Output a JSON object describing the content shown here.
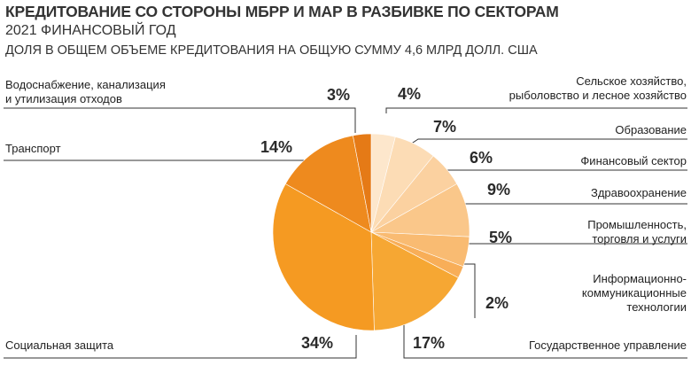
{
  "chart_data": {
    "type": "pie",
    "title": "КРЕДИТОВАНИЕ СО СТОРОНЫ МБРР И МАР В РАЗБИВКЕ ПО СЕКТОРАМ",
    "subtitle": "2021 ФИНАНСОВЫЙ ГОД",
    "note": "ДОЛЯ В ОБЩЕМ ОБЪЕМЕ КРЕДИТОВАНИЯ НА ОБЩУЮ СУММУ 4,6 МЛРД ДОЛЛ. США",
    "slices": [
      {
        "label": "Сельское хозяйство,\nрыболовство и лесное хозяйство",
        "value": 4,
        "value_label": "4%",
        "color": "#fde7cc"
      },
      {
        "label": "Образование",
        "value": 7,
        "value_label": "7%",
        "color": "#fcdcb5"
      },
      {
        "label": "Финансовый сектор",
        "value": 6,
        "value_label": "6%",
        "color": "#fbd1a0"
      },
      {
        "label": "Здравоохранение",
        "value": 9,
        "value_label": "9%",
        "color": "#fac78a"
      },
      {
        "label": "Промышленность,\nторговля и услуги",
        "value": 5,
        "value_label": "5%",
        "color": "#f9bb72"
      },
      {
        "label": "Информационно-\nкоммуникационные\nтехнологии",
        "value": 2,
        "value_label": "2%",
        "color": "#f8ae58"
      },
      {
        "label": "Государственное управление",
        "value": 17,
        "value_label": "17%",
        "color": "#f6a733"
      },
      {
        "label": "Социальная защита",
        "value": 34,
        "value_label": "34%",
        "color": "#f59a22"
      },
      {
        "label": "Транспорт",
        "value": 14,
        "value_label": "14%",
        "color": "#ee8a1e"
      },
      {
        "label": "Водоснабжение, канализация\nи утилизация отходов",
        "value": 3,
        "value_label": "3%",
        "color": "#e57a16"
      }
    ]
  }
}
